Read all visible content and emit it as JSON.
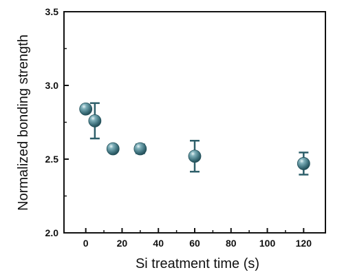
{
  "chart_data": {
    "type": "scatter",
    "xlabel": "Si treatment time (s)",
    "ylabel": "Normalized bonding strength",
    "xlim": [
      -12,
      132
    ],
    "ylim": [
      2.0,
      3.5
    ],
    "x_ticks": [
      0,
      20,
      40,
      60,
      80,
      100,
      120
    ],
    "y_ticks": [
      2.0,
      2.5,
      3.0,
      3.5
    ],
    "y_tick_labels": [
      "2.0",
      "2.5",
      "3.0",
      "3.5"
    ],
    "grid": false,
    "marker_color": "#3c6f7a",
    "error_bar_color": "#2e5f6a",
    "series": [
      {
        "x": [
          0,
          5,
          15,
          30,
          60,
          120
        ],
        "y": [
          2.84,
          2.76,
          2.57,
          2.57,
          2.52,
          2.47
        ],
        "error": [
          0.0,
          0.12,
          0.0,
          0.03,
          0.105,
          0.075
        ]
      }
    ]
  }
}
